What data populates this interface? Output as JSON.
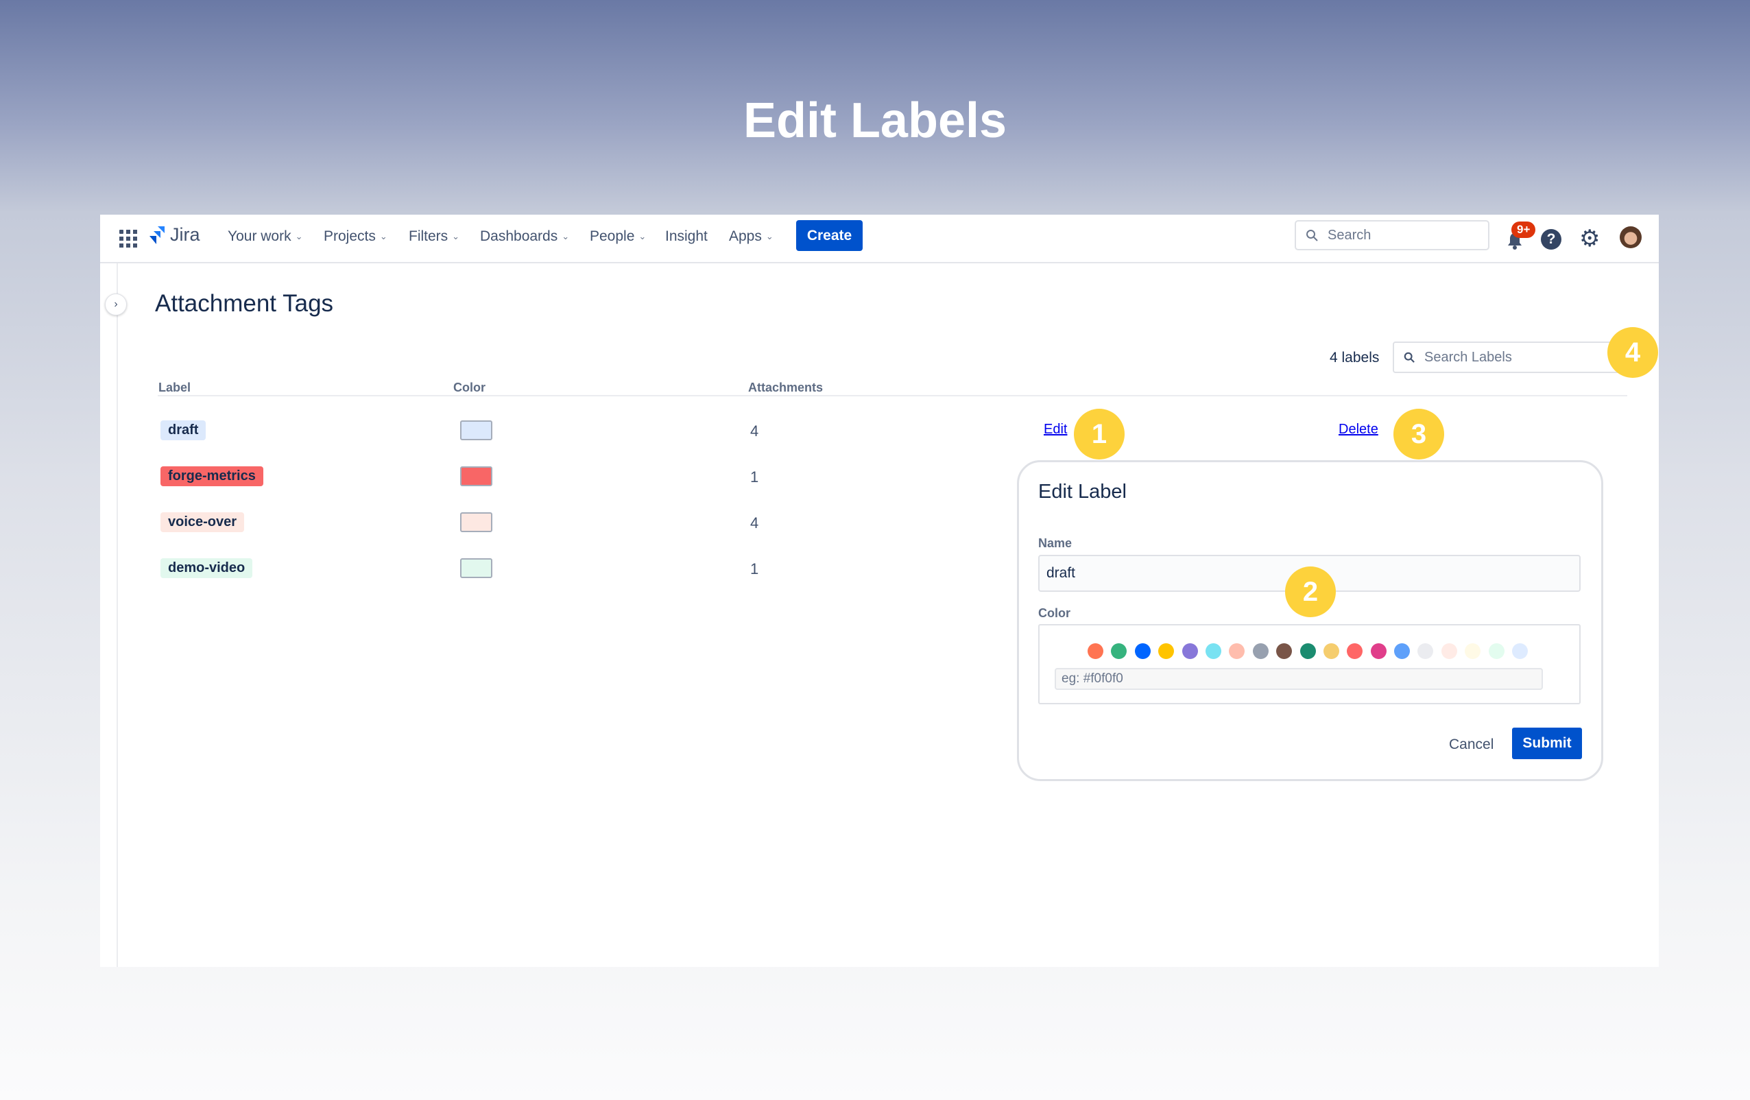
{
  "hero_title": "Edit Labels",
  "nav": {
    "brand": "Jira",
    "items": [
      {
        "label": "Your work",
        "dropdown": true
      },
      {
        "label": "Projects",
        "dropdown": true
      },
      {
        "label": "Filters",
        "dropdown": true
      },
      {
        "label": "Dashboards",
        "dropdown": true
      },
      {
        "label": "People",
        "dropdown": true
      },
      {
        "label": "Insight",
        "dropdown": false
      },
      {
        "label": "Apps",
        "dropdown": true
      }
    ],
    "create": "Create",
    "search_placeholder": "Search",
    "notif_count": "9+"
  },
  "page": {
    "title": "Attachment Tags",
    "count": "4 labels",
    "search_placeholder": "Search Labels",
    "columns": [
      "Label",
      "Color",
      "Attachments"
    ],
    "rows": [
      {
        "label": "draft",
        "color": "#dce9fc",
        "count": "4"
      },
      {
        "label": "forge-metrics",
        "color": "#f86666",
        "count": "1"
      },
      {
        "label": "voice-over",
        "color": "#fde8e2",
        "count": "4"
      },
      {
        "label": "demo-video",
        "color": "#e2f8ee",
        "count": "1"
      }
    ],
    "edit": "Edit",
    "delete": "Delete"
  },
  "dialog": {
    "title": "Edit Label",
    "name_label": "Name",
    "name_value": "draft",
    "color_label": "Color",
    "hex_placeholder": "eg: #f0f0f0",
    "cancel": "Cancel",
    "submit": "Submit",
    "palette": [
      "#ff7452",
      "#36b37e",
      "#0065ff",
      "#ffc400",
      "#8777d9",
      "#79e2f2",
      "#ffbdad",
      "#97a0af",
      "#795548",
      "#1b8c70",
      "#f5cd6e",
      "#ff6666",
      "#e03e8a",
      "#5ea0fa",
      "#ebecf0",
      "#ffebe6",
      "#fffae6",
      "#e3fcef",
      "#deebff"
    ]
  },
  "callouts": [
    "1",
    "2",
    "3",
    "4"
  ],
  "colors": {
    "accent": "#0052cc",
    "callout": "#fdd23c",
    "badge": "#de350b"
  }
}
